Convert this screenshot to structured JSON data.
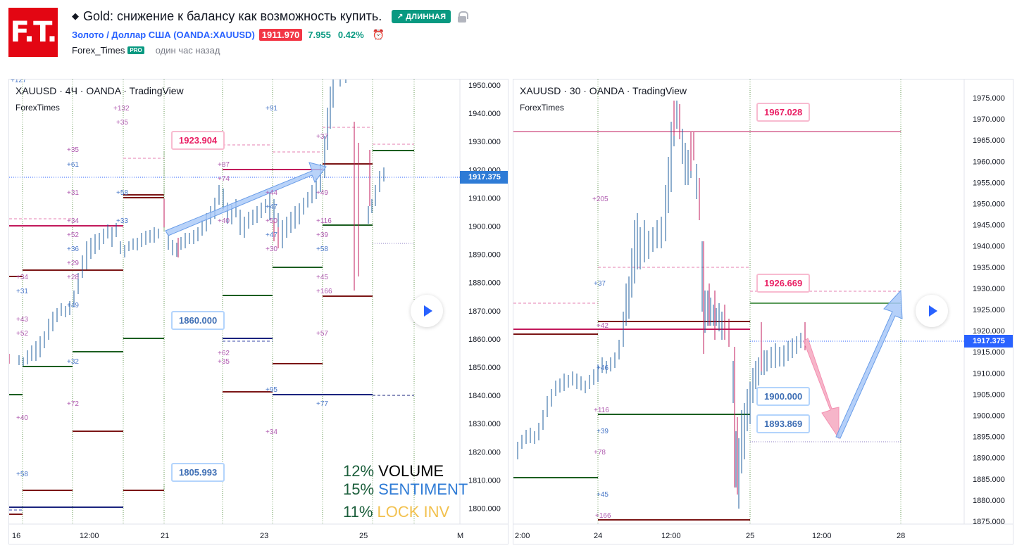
{
  "header": {
    "logo_text": "F.T.",
    "title": "Gold: снижение к балансу как возможность купить.",
    "direction_badge": "↗ ДЛИННАЯ",
    "symbol_link": "Золото / Доллар США (OANDA:XAUUSD)",
    "price": "1911.970",
    "change_abs": "7.955",
    "change_pct": "0.42%",
    "author": "Forex_Times",
    "author_badge": "PRO",
    "posted": "один час назад"
  },
  "icons": {
    "direction": "caret-diamond-icon",
    "lock": "lock-icon",
    "alarm": "alarm-clock-icon",
    "play": "play-icon"
  },
  "colors": {
    "brand": "#e30613",
    "accent": "#2962ff",
    "up": "#089981",
    "down": "#f23645",
    "pink_level": "#e91e63"
  },
  "left_chart": {
    "title": "XAUUSD · 4Ч · OANDA · TradingView",
    "author": "ForexTimes",
    "last_price": "1917.375",
    "y_ticks": [
      "1950.000",
      "1940.000",
      "1930.000",
      "1920.000",
      "1910.000",
      "1900.000",
      "1890.000",
      "1880.000",
      "1870.000",
      "1860.000",
      "1850.000",
      "1840.000",
      "1830.000",
      "1820.000",
      "1810.000",
      "1800.000"
    ],
    "x_ticks": [
      "16",
      "12:00",
      "21",
      "23",
      "25",
      "M"
    ],
    "price_boxes": [
      "1923.904",
      "1860.000",
      "1805.993"
    ],
    "stats": [
      {
        "pct": "12%",
        "label": "VOLUME"
      },
      {
        "pct": "15%",
        "label": "SENTIMENT"
      },
      {
        "pct": "11%",
        "label": "LOCK INV"
      }
    ],
    "annotations": [
      "+127",
      "+132",
      "+35",
      "+91",
      "+37",
      "+35",
      "+61",
      "+87",
      "+31",
      "+58",
      "+74",
      "+44",
      "+47",
      "+49",
      "+34",
      "+33",
      "+40",
      "+52",
      "+36",
      "+29",
      "+28",
      "+49",
      "+43",
      "+52",
      "+32",
      "+72",
      "+40",
      "+58",
      "+62",
      "+35",
      "+95",
      "+34",
      "+57",
      "+77",
      "+116",
      "+39",
      "+58",
      "+45",
      "+166",
      "+31",
      "+34",
      "+50",
      "+47",
      "+30"
    ]
  },
  "right_chart": {
    "title": "XAUUSD · 30 · OANDA · TradingView",
    "author": "ForexTimes",
    "last_price": "1917.375",
    "y_ticks": [
      "1975.000",
      "1970.000",
      "1965.000",
      "1960.000",
      "1955.000",
      "1950.000",
      "1945.000",
      "1940.000",
      "1935.000",
      "1930.000",
      "1925.000",
      "1920.000",
      "1915.000",
      "1910.000",
      "1905.000",
      "1900.000",
      "1895.000",
      "1890.000",
      "1885.000",
      "1880.000",
      "1875.000"
    ],
    "x_ticks": [
      "2:00",
      "24",
      "12:00",
      "25",
      "12:00",
      "28"
    ],
    "price_boxes": [
      "1967.028",
      "1926.669",
      "1900.000",
      "1893.869"
    ],
    "annotations": [
      "+205",
      "+37",
      "+42",
      "+46",
      "+116",
      "+39",
      "+78",
      "+45",
      "+166"
    ]
  }
}
